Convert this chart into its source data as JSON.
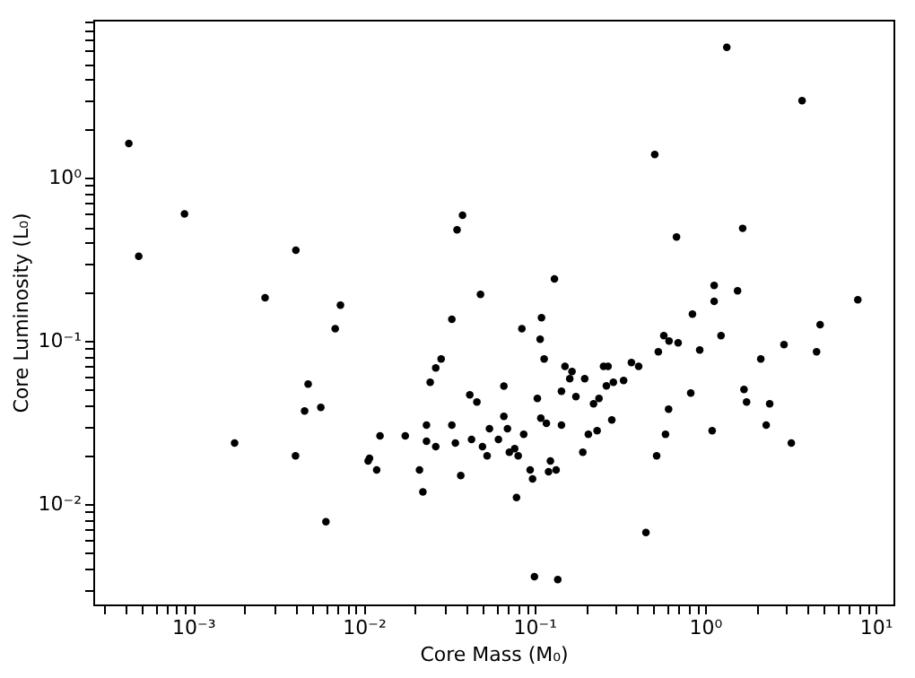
{
  "chart_data": {
    "type": "scatter",
    "xlabel": "Core Mass (M₀)",
    "ylabel": "Core Luminosity (L₀)",
    "log": "xy",
    "grid": false,
    "legend": false,
    "marker": "circle",
    "xlim": [
      0.00026,
      12.7
    ],
    "ylim": [
      0.00243,
      9.3
    ],
    "xticks": [
      {
        "value": 0.001,
        "label": "10⁻³"
      },
      {
        "value": 0.01,
        "label": "10⁻²"
      },
      {
        "value": 0.1,
        "label": "10⁻¹"
      },
      {
        "value": 1,
        "label": "10⁰"
      },
      {
        "value": 10,
        "label": "10¹"
      },
      {
        "value": 0.0003,
        "label": null
      },
      {
        "value": 0.0004,
        "label": null
      },
      {
        "value": 0.0005,
        "label": null
      },
      {
        "value": 0.0006,
        "label": null
      },
      {
        "value": 0.0007,
        "label": null
      },
      {
        "value": 0.0008,
        "label": null
      },
      {
        "value": 0.0009,
        "label": null
      },
      {
        "value": 0.002,
        "label": null
      },
      {
        "value": 0.003,
        "label": null
      },
      {
        "value": 0.004,
        "label": null
      },
      {
        "value": 0.005,
        "label": null
      },
      {
        "value": 0.006,
        "label": null
      },
      {
        "value": 0.007,
        "label": null
      },
      {
        "value": 0.008,
        "label": null
      },
      {
        "value": 0.009,
        "label": null
      },
      {
        "value": 0.02,
        "label": null
      },
      {
        "value": 0.03,
        "label": null
      },
      {
        "value": 0.04,
        "label": null
      },
      {
        "value": 0.05,
        "label": null
      },
      {
        "value": 0.06,
        "label": null
      },
      {
        "value": 0.07,
        "label": null
      },
      {
        "value": 0.08,
        "label": null
      },
      {
        "value": 0.09,
        "label": null
      },
      {
        "value": 0.2,
        "label": null
      },
      {
        "value": 0.3,
        "label": null
      },
      {
        "value": 0.4,
        "label": null
      },
      {
        "value": 0.5,
        "label": null
      },
      {
        "value": 0.6,
        "label": null
      },
      {
        "value": 0.7,
        "label": null
      },
      {
        "value": 0.8,
        "label": null
      },
      {
        "value": 0.9,
        "label": null
      },
      {
        "value": 2,
        "label": null
      },
      {
        "value": 3,
        "label": null
      },
      {
        "value": 4,
        "label": null
      },
      {
        "value": 5,
        "label": null
      },
      {
        "value": 6,
        "label": null
      },
      {
        "value": 7,
        "label": null
      },
      {
        "value": 8,
        "label": null
      },
      {
        "value": 9,
        "label": null
      }
    ],
    "yticks": [
      {
        "value": 0.01,
        "label": "10⁻²"
      },
      {
        "value": 0.1,
        "label": "10⁻¹"
      },
      {
        "value": 1,
        "label": "10⁰"
      },
      {
        "value": 0.003,
        "label": null
      },
      {
        "value": 0.004,
        "label": null
      },
      {
        "value": 0.005,
        "label": null
      },
      {
        "value": 0.006,
        "label": null
      },
      {
        "value": 0.007,
        "label": null
      },
      {
        "value": 0.008,
        "label": null
      },
      {
        "value": 0.009,
        "label": null
      },
      {
        "value": 0.02,
        "label": null
      },
      {
        "value": 0.03,
        "label": null
      },
      {
        "value": 0.04,
        "label": null
      },
      {
        "value": 0.05,
        "label": null
      },
      {
        "value": 0.06,
        "label": null
      },
      {
        "value": 0.07,
        "label": null
      },
      {
        "value": 0.08,
        "label": null
      },
      {
        "value": 0.09,
        "label": null
      },
      {
        "value": 0.2,
        "label": null
      },
      {
        "value": 0.3,
        "label": null
      },
      {
        "value": 0.4,
        "label": null
      },
      {
        "value": 0.5,
        "label": null
      },
      {
        "value": 0.6,
        "label": null
      },
      {
        "value": 0.7,
        "label": null
      },
      {
        "value": 0.8,
        "label": null
      },
      {
        "value": 0.9,
        "label": null
      },
      {
        "value": 2,
        "label": null
      },
      {
        "value": 3,
        "label": null
      },
      {
        "value": 4,
        "label": null
      },
      {
        "value": 5,
        "label": null
      },
      {
        "value": 6,
        "label": null
      },
      {
        "value": 7,
        "label": null
      },
      {
        "value": 8,
        "label": null
      },
      {
        "value": 9,
        "label": null
      }
    ],
    "series": [
      {
        "color": "#000000",
        "x": [
          0.00042,
          0.00048,
          0.00089,
          0.004,
          0.0352,
          0.0379,
          1.34,
          3.7,
          0.507,
          0.68,
          1.66,
          0.00264,
          0.0073,
          0.0068,
          0.0483,
          0.0328,
          0.0284,
          0.0264,
          0.0245,
          0.00472,
          0.0045,
          0.0056,
          0.0418,
          0.046,
          0.00175,
          0.00398,
          0.0108,
          0.0106,
          0.0119,
          0.01245,
          0.0175,
          0.0233,
          0.0233,
          0.0264,
          0.0328,
          0.0344,
          0.0428,
          0.0496,
          0.0528,
          0.0545,
          0.0212,
          0.0222,
          0.037,
          0.006,
          0.131,
          1.13,
          1.13,
          1.55,
          7.85,
          0.0844,
          0.11,
          0.108,
          0.843,
          4.72,
          0.573,
          0.615,
          0.695,
          1.24,
          0.532,
          0.93,
          2.9,
          4.5,
          2.12,
          0.114,
          0.151,
          0.166,
          0.161,
          0.197,
          0.144,
          0.175,
          0.254,
          0.27,
          0.37,
          0.408,
          0.333,
          0.29,
          0.264,
          0.239,
          0.222,
          0.824,
          0.611,
          0.284,
          0.233,
          0.207,
          0.192,
          0.586,
          1.1,
          0.52,
          1.69,
          1.75,
          2.39,
          2.28,
          3.2,
          0.45,
          0.1,
          0.137,
          0.0662,
          0.104,
          0.0662,
          0.109,
          0.1175,
          0.144,
          0.0695,
          0.0865,
          0.0615,
          0.0713,
          0.0766,
          0.0803,
          0.0944,
          0.0975,
          0.124,
          0.121,
          0.134,
          0.0785
        ],
        "values": [
          1.62,
          0.33,
          0.6,
          0.36,
          0.48,
          0.59,
          6.3,
          2.97,
          1.39,
          0.434,
          0.49,
          0.184,
          0.166,
          0.119,
          0.193,
          0.136,
          0.0776,
          0.0684,
          0.0558,
          0.0545,
          0.0373,
          0.0392,
          0.0468,
          0.0423,
          0.0237,
          0.0198,
          0.0191,
          0.0184,
          0.0162,
          0.0262,
          0.0262,
          0.0305,
          0.0243,
          0.0225,
          0.0305,
          0.0237,
          0.0249,
          0.0225,
          0.0198,
          0.029,
          0.0162,
          0.0119,
          0.015,
          0.0078,
          0.24,
          0.219,
          0.175,
          0.203,
          0.179,
          0.119,
          0.139,
          0.1026,
          0.146,
          0.126,
          0.108,
          0.1,
          0.0975,
          0.108,
          0.086,
          0.088,
          0.095,
          0.086,
          0.0776,
          0.0776,
          0.07,
          0.065,
          0.0588,
          0.0588,
          0.0492,
          0.0456,
          0.07,
          0.07,
          0.0738,
          0.07,
          0.0573,
          0.0558,
          0.0531,
          0.0445,
          0.0412,
          0.048,
          0.0382,
          0.0328,
          0.0282,
          0.0268,
          0.0208,
          0.0268,
          0.0282,
          0.0198,
          0.0505,
          0.0423,
          0.0412,
          0.0305,
          0.0237,
          0.0067,
          0.0036,
          0.00345,
          0.053,
          0.0445,
          0.0345,
          0.0337,
          0.0313,
          0.0305,
          0.029,
          0.0268,
          0.0249,
          0.0208,
          0.0219,
          0.0198,
          0.0162,
          0.0143,
          0.0184,
          0.0158,
          0.0162,
          0.011
        ]
      }
    ]
  }
}
